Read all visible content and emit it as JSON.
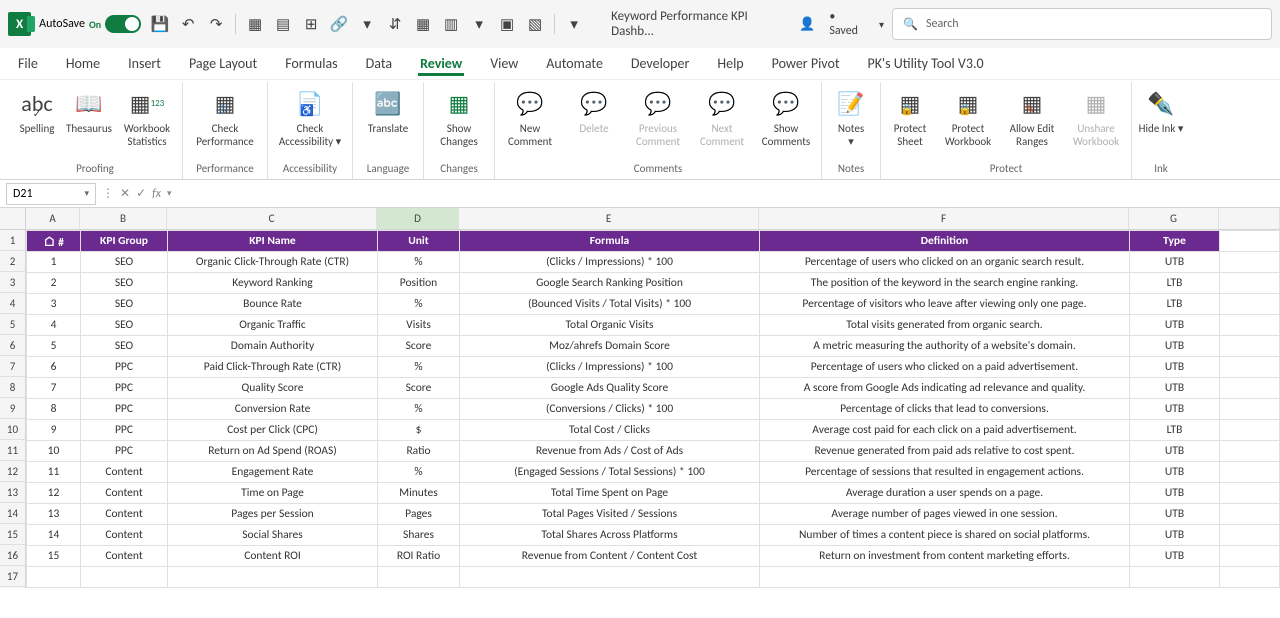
{
  "title_bar": {
    "autosave_label": "AutoSave",
    "on_label": "On",
    "doc_title": "Keyword Performance KPI Dashb...",
    "saved_label": "• Saved",
    "search_placeholder": "Search"
  },
  "ribbon_tabs": [
    "File",
    "Home",
    "Insert",
    "Page Layout",
    "Formulas",
    "Data",
    "Review",
    "View",
    "Automate",
    "Developer",
    "Help",
    "Power Pivot",
    "PK's Utility Tool V3.0"
  ],
  "active_tab": "Review",
  "ribbon_groups": {
    "proofing": {
      "label": "Proofing",
      "spelling": "Spelling",
      "thesaurus": "Thesaurus",
      "stats": "Workbook Statistics"
    },
    "performance": {
      "label": "Performance",
      "check": "Check Performance"
    },
    "accessibility": {
      "label": "Accessibility",
      "check": "Check Accessibility"
    },
    "language": {
      "label": "Language",
      "translate": "Translate"
    },
    "changes": {
      "label": "Changes",
      "show": "Show Changes"
    },
    "comments": {
      "label": "Comments",
      "new": "New Comment",
      "delete": "Delete",
      "prev": "Previous Comment",
      "next": "Next Comment",
      "show": "Show Comments"
    },
    "notes": {
      "label": "Notes",
      "notes": "Notes"
    },
    "protect": {
      "label": "Protect",
      "sheet": "Protect Sheet",
      "workbook": "Protect Workbook",
      "ranges": "Allow Edit Ranges",
      "unshare": "Unshare Workbook"
    },
    "ink": {
      "label": "Ink",
      "hide": "Hide Ink"
    }
  },
  "name_box": "D21",
  "columns": [
    "A",
    "B",
    "C",
    "D",
    "E",
    "F",
    "G"
  ],
  "selected_col": "D",
  "table": {
    "headers": [
      "#",
      "KPI Group",
      "KPI Name",
      "Unit",
      "Formula",
      "Definition",
      "Type"
    ],
    "rows": [
      [
        1,
        "SEO",
        "Organic Click-Through Rate (CTR)",
        "%",
        "(Clicks / Impressions) * 100",
        "Percentage of users who clicked on an organic search result.",
        "UTB"
      ],
      [
        2,
        "SEO",
        "Keyword Ranking",
        "Position",
        "Google Search Ranking Position",
        "The position of the keyword in the search engine ranking.",
        "LTB"
      ],
      [
        3,
        "SEO",
        "Bounce Rate",
        "%",
        "(Bounced Visits / Total Visits) * 100",
        "Percentage of visitors who leave after viewing only one page.",
        "LTB"
      ],
      [
        4,
        "SEO",
        "Organic Traffic",
        "Visits",
        "Total Organic Visits",
        "Total visits generated from organic search.",
        "UTB"
      ],
      [
        5,
        "SEO",
        "Domain Authority",
        "Score",
        "Moz/ahrefs Domain Score",
        "A metric measuring the authority of a website's domain.",
        "UTB"
      ],
      [
        6,
        "PPC",
        "Paid Click-Through Rate (CTR)",
        "%",
        "(Clicks / Impressions) * 100",
        "Percentage of users who clicked on a paid advertisement.",
        "UTB"
      ],
      [
        7,
        "PPC",
        "Quality Score",
        "Score",
        "Google Ads Quality Score",
        "A score from Google Ads indicating ad relevance and quality.",
        "UTB"
      ],
      [
        8,
        "PPC",
        "Conversion Rate",
        "%",
        "(Conversions / Clicks) * 100",
        "Percentage of clicks that lead to conversions.",
        "UTB"
      ],
      [
        9,
        "PPC",
        "Cost per Click (CPC)",
        "$",
        "Total Cost / Clicks",
        "Average cost paid for each click on a paid advertisement.",
        "LTB"
      ],
      [
        10,
        "PPC",
        "Return on Ad Spend (ROAS)",
        "Ratio",
        "Revenue from Ads / Cost of Ads",
        "Revenue generated from paid ads relative to cost spent.",
        "UTB"
      ],
      [
        11,
        "Content",
        "Engagement Rate",
        "%",
        "(Engaged Sessions / Total Sessions) * 100",
        "Percentage of sessions that resulted in engagement actions.",
        "UTB"
      ],
      [
        12,
        "Content",
        "Time on Page",
        "Minutes",
        "Total Time Spent on Page",
        "Average duration a user spends on a page.",
        "UTB"
      ],
      [
        13,
        "Content",
        "Pages per Session",
        "Pages",
        "Total Pages Visited / Sessions",
        "Average number of pages viewed in one session.",
        "UTB"
      ],
      [
        14,
        "Content",
        "Social Shares",
        "Shares",
        "Total Shares Across Platforms",
        "Number of times a content piece is shared on social platforms.",
        "UTB"
      ],
      [
        15,
        "Content",
        "Content ROI",
        "ROI Ratio",
        "Revenue from Content / Content Cost",
        "Return on investment from content marketing efforts.",
        "UTB"
      ]
    ]
  },
  "visible_row_count": 17
}
